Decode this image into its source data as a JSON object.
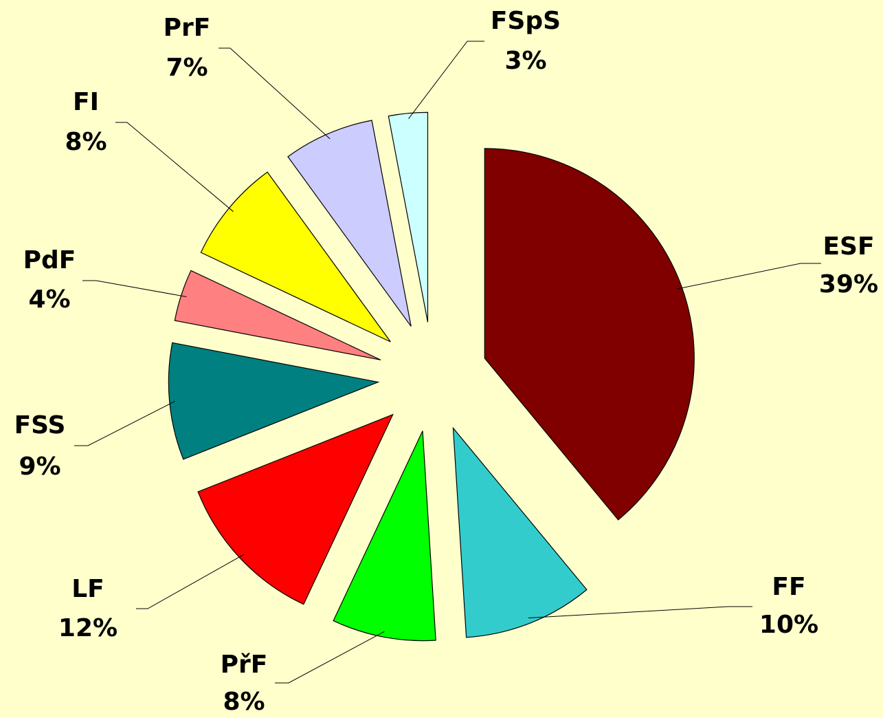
{
  "chart_data": {
    "type": "pie",
    "categories": [
      "ESF",
      "FF",
      "PřF",
      "LF",
      "FSS",
      "PdF",
      "FI",
      "PrF",
      "FSpS"
    ],
    "values": [
      39,
      10,
      8,
      12,
      9,
      4,
      8,
      7,
      3
    ],
    "value_labels": [
      "39%",
      "10%",
      "8%",
      "12%",
      "9%",
      "4%",
      "8%",
      "7%",
      "3%"
    ],
    "colors": [
      "#800000",
      "#33cccc",
      "#00ff00",
      "#ff0000",
      "#008080",
      "#ff8080",
      "#ffff00",
      "#ccccff",
      "#ccffff"
    ],
    "exploded": true
  }
}
